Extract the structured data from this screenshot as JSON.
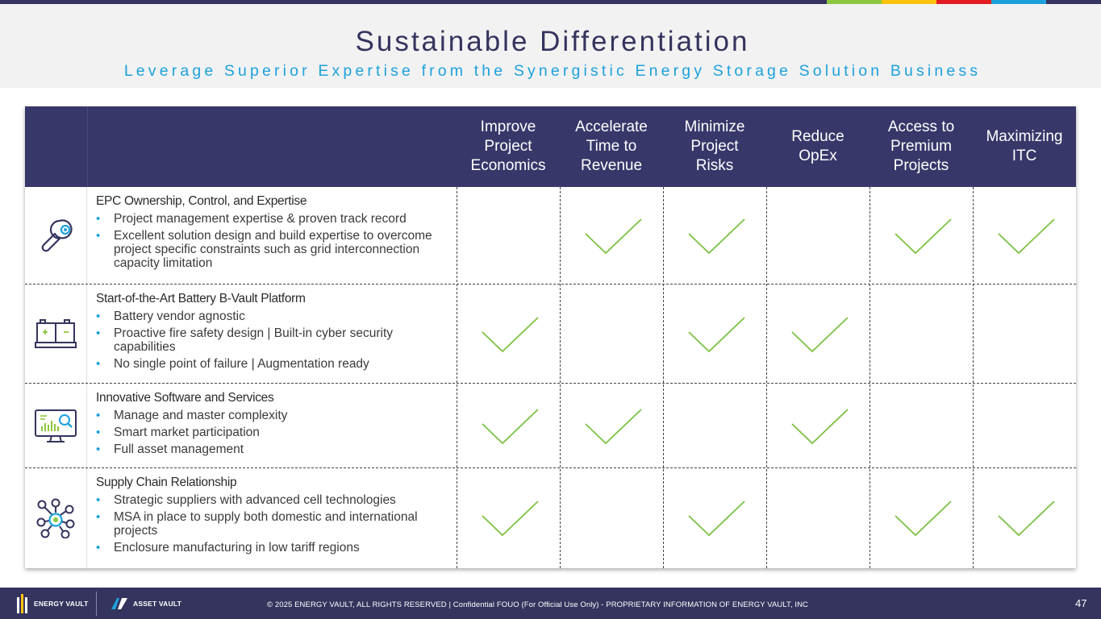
{
  "header": {
    "title": "Sustainable Differentiation",
    "subtitle": "Leverage Superior Expertise from the Synergistic Energy Storage Solution Business",
    "accent_colors": [
      "#8dc63f",
      "#ffc20e",
      "#e31b23",
      "#1da1dc"
    ]
  },
  "table": {
    "columns": [
      "Improve\nProject\nEconomics",
      "Accelerate\nTime to\nRevenue",
      "Minimize\nProject\nRisks",
      "Reduce\nOpEx",
      "Access to\nPremium\nProjects",
      "Maximizing\nITC"
    ],
    "rows": [
      {
        "icon": "wrench-icon",
        "title": "EPC Ownership, Control, and Expertise",
        "bullets": [
          "Project management expertise & proven track record",
          "Excellent solution design and build expertise to overcome project specific constraints such as grid interconnection capacity limitation"
        ],
        "checks": [
          false,
          true,
          true,
          false,
          true,
          true
        ]
      },
      {
        "icon": "battery-icon",
        "title": "Start-of-the-Art Battery B-Vault Platform",
        "bullets": [
          "Battery vendor agnostic",
          "Proactive fire safety design | Built-in cyber security capabilities",
          "No single point of failure | Augmentation ready"
        ],
        "checks": [
          true,
          false,
          true,
          true,
          false,
          false
        ]
      },
      {
        "icon": "monitor-analytics-icon",
        "title": "Innovative Software and Services",
        "bullets": [
          "Manage and master complexity",
          "Smart market participation",
          "Full asset management"
        ],
        "checks": [
          true,
          true,
          false,
          true,
          false,
          false
        ]
      },
      {
        "icon": "network-icon",
        "title": "Supply Chain Relationship",
        "bullets": [
          "Strategic suppliers with advanced cell technologies",
          "MSA in place to supply both domestic and international projects",
          "Enclosure manufacturing in low tariff regions"
        ],
        "checks": [
          true,
          false,
          true,
          false,
          true,
          true
        ]
      }
    ],
    "check_color": "#7cc142"
  },
  "footer": {
    "logo_energy_vault": "ENERGY VAULT",
    "logo_asset_vault": "ASSET VAULT",
    "copyright": "© 2025 ENERGY VAULT, ALL RIGHTS RESERVED  |  Confidential FOUO (For Official Use Only) - PROPRIETARY INFORMATION OF ENERGY VAULT, INC",
    "page_number": "47"
  }
}
